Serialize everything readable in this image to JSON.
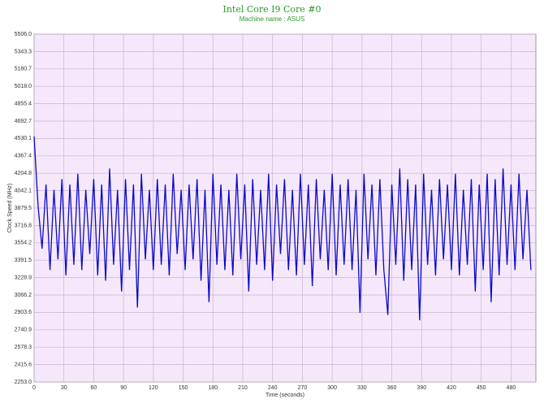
{
  "chart_data": {
    "type": "line",
    "title": "Intel Core I9 Core #0",
    "subtitle": "Machine name : ASUS",
    "x_label": "Time (seconds)",
    "y_label": "Clock Speed (MHz)",
    "x": [
      0,
      4,
      8,
      12,
      16,
      20,
      24,
      28,
      32,
      36,
      40,
      44,
      48,
      52,
      56,
      60,
      64,
      68,
      72,
      76,
      80,
      84,
      88,
      92,
      96,
      100,
      104,
      108,
      112,
      116,
      120,
      124,
      128,
      132,
      136,
      140,
      144,
      148,
      152,
      156,
      160,
      164,
      168,
      172,
      176,
      180,
      184,
      188,
      192,
      196,
      200,
      204,
      208,
      212,
      216,
      220,
      224,
      228,
      232,
      236,
      240,
      244,
      248,
      252,
      256,
      260,
      264,
      268,
      272,
      276,
      280,
      284,
      288,
      292,
      296,
      300,
      304,
      308,
      312,
      316,
      320,
      324,
      328,
      332,
      336,
      340,
      344,
      348,
      352,
      356,
      360,
      364,
      368,
      372,
      376,
      380,
      384,
      388,
      392,
      396,
      400,
      404,
      408,
      412,
      416,
      420,
      424,
      428,
      432,
      436,
      440,
      444,
      448,
      452,
      456,
      460,
      464,
      468,
      472,
      476,
      480,
      484,
      488,
      492,
      496,
      500
    ],
    "series": [
      {
        "name": "Core #0",
        "color": "#0a0ac8",
        "values": [
          4550,
          3900,
          3500,
          4100,
          3300,
          4050,
          3400,
          4150,
          3250,
          4100,
          3350,
          4200,
          3300,
          4050,
          3450,
          4150,
          3250,
          4100,
          3200,
          4250,
          3350,
          4050,
          3100,
          4150,
          3300,
          4100,
          2950,
          4200,
          3400,
          4050,
          3300,
          4150,
          3350,
          4100,
          3250,
          4200,
          3450,
          4050,
          3300,
          4100,
          3400,
          4150,
          3200,
          4050,
          3000,
          4200,
          3350,
          4100,
          3300,
          4050,
          3250,
          4200,
          3400,
          4100,
          3100,
          4150,
          3350,
          4050,
          3300,
          4200,
          3200,
          4100,
          3450,
          4150,
          3300,
          4050,
          3250,
          4200,
          3350,
          4100,
          3150,
          4150,
          3400,
          4050,
          3300,
          4200,
          3250,
          4100,
          3350,
          4150,
          3300,
          4050,
          2900,
          4200,
          3400,
          4100,
          3250,
          4150,
          3300,
          2880,
          4100,
          3350,
          4250,
          3200,
          4150,
          3300,
          4100,
          2830,
          4200,
          3350,
          4050,
          3250,
          4150,
          3400,
          4100,
          3300,
          4200,
          3250,
          4050,
          3350,
          4150,
          3100,
          4100,
          3300,
          4200,
          3000,
          4150,
          3250,
          4250,
          3350,
          4100,
          3300,
          4200,
          3400,
          4050,
          3300
        ]
      }
    ],
    "xlim": [
      0,
      505
    ],
    "ylim": [
      2253,
      5506
    ],
    "xticks": [
      0,
      30,
      60,
      90,
      120,
      150,
      180,
      210,
      240,
      270,
      300,
      330,
      360,
      390,
      420,
      450,
      480
    ],
    "yticks": [
      {
        "value": 2253,
        "label": "2253.0"
      },
      2415.6,
      2578.3,
      2740.9,
      2903.6,
      3066.2,
      3228.9,
      3391.5,
      3554.2,
      3716.8,
      3879.5,
      4042.1,
      4204.8,
      4367.4,
      4530.1,
      4692.7,
      4855.4,
      {
        "value": 5018,
        "label": "5018.0"
      },
      5180.7,
      5343.3,
      {
        "value": 5506,
        "label": "5506.0"
      }
    ],
    "grid": true
  }
}
